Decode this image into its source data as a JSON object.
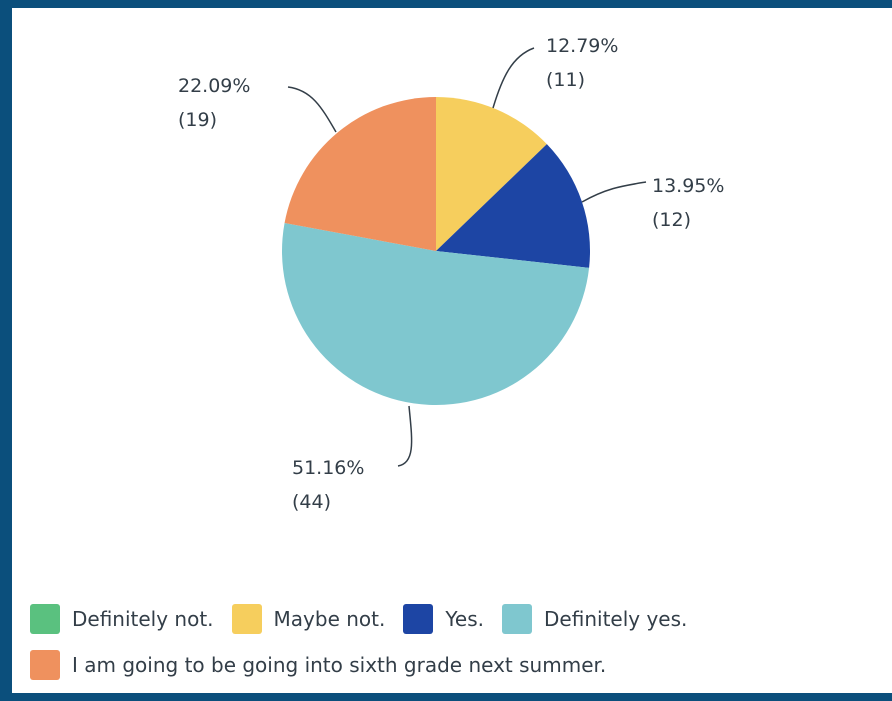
{
  "chart_data": {
    "type": "pie",
    "categories": [
      "Definitely not.",
      "Maybe not.",
      "Yes.",
      "Definitely yes.",
      "I am going to be going into sixth grade next summer."
    ],
    "values": [
      0,
      11,
      12,
      44,
      19
    ],
    "percentages": [
      0,
      12.79,
      13.95,
      51.16,
      22.09
    ],
    "slice_labels": [
      {
        "pct": "",
        "count": ""
      },
      {
        "pct": "12.79%",
        "count": "(11)"
      },
      {
        "pct": "13.95%",
        "count": "(12)"
      },
      {
        "pct": "51.16%",
        "count": "(44)"
      },
      {
        "pct": "22.09%",
        "count": "(19)"
      }
    ],
    "colors": [
      "#5ac17f",
      "#f6ce5d",
      "#1d45a4",
      "#7fc7cf",
      "#ef915e"
    ],
    "legend_position": "bottom",
    "start_angle": "12 o'clock, clockwise"
  },
  "legend": {
    "items": [
      {
        "label": "Definitely not.",
        "color": "#5ac17f"
      },
      {
        "label": "Maybe not.",
        "color": "#f6ce5d"
      },
      {
        "label": "Yes.",
        "color": "#1d45a4"
      },
      {
        "label": "Definitely yes.",
        "color": "#7fc7cf"
      },
      {
        "label": "I am going to be going into sixth grade next summer.",
        "color": "#ef915e"
      }
    ]
  },
  "colors": {
    "border": "#0b4f7c",
    "background": "#ffffff",
    "text": "#333e48"
  }
}
